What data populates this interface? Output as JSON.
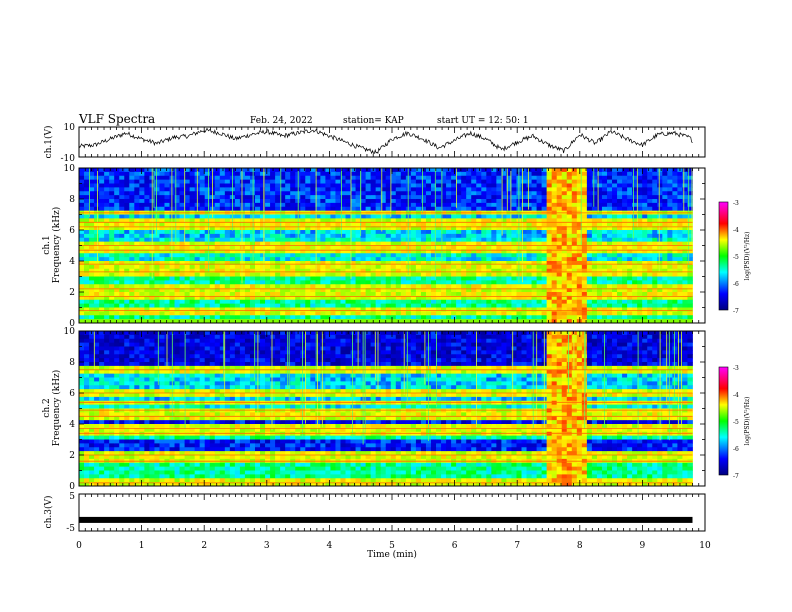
{
  "header": {
    "title": "VLF Spectra",
    "date": "Feb. 24, 2022",
    "station": "station= KAP",
    "start": "start  UT =   12: 50: 1"
  },
  "panels": {
    "ch1_waveform": {
      "ylabel": "ch.1(V)",
      "ticks": [
        "10",
        "-10"
      ]
    },
    "ch1_spectrogram": {
      "ylabel_top": "ch.1",
      "ylabel": "Frequency (kHz)",
      "ticks": [
        "10",
        "8",
        "6",
        "4",
        "2",
        "0"
      ]
    },
    "ch2_spectrogram": {
      "ylabel_top": "ch.2",
      "ylabel": "Frequency (kHz)",
      "ticks": [
        "10",
        "8",
        "6",
        "4",
        "2",
        "0"
      ]
    },
    "ch3_waveform": {
      "ylabel": "ch.3(V)",
      "ticks": [
        "5",
        "-5"
      ]
    }
  },
  "xaxis": {
    "label": "Time (min)",
    "ticks": [
      "0",
      "1",
      "2",
      "3",
      "4",
      "5",
      "6",
      "7",
      "8",
      "9",
      "10"
    ]
  },
  "colorbar": {
    "label": "log(PSD)(V²/Hz)",
    "ticks": [
      "-3",
      "-4",
      "-5",
      "-6",
      "-7"
    ],
    "colors": [
      "#ff00ff",
      "#ff0000",
      "#ffa500",
      "#ffff00",
      "#00ff00",
      "#00ffff",
      "#0000ff",
      "#00007f"
    ]
  },
  "chart_data": [
    {
      "type": "line",
      "title": "VLF Spectra",
      "ylabel": "ch.1(V)",
      "xlabel": "Time (min)",
      "xlim": [
        0,
        10
      ],
      "ylim": [
        -10,
        10
      ],
      "x": [
        0,
        0.25,
        0.5,
        0.75,
        1.0,
        1.25,
        1.5,
        1.75,
        2.0,
        2.25,
        2.5,
        2.75,
        3.0,
        3.25,
        3.5,
        3.75,
        4.0,
        4.25,
        4.5,
        4.75,
        5.0,
        5.25,
        5.5,
        5.75,
        6.0,
        6.25,
        6.5,
        6.75,
        7.0,
        7.25,
        7.5,
        7.75,
        8.0,
        8.25,
        8.5,
        8.75,
        9.0,
        9.25,
        9.5,
        9.75,
        9.8
      ],
      "values": [
        -3,
        -2,
        2,
        6,
        2,
        -1,
        3,
        4,
        8,
        6,
        2,
        5,
        7,
        4,
        6,
        8,
        4,
        0,
        -4,
        -7,
        2,
        6,
        2,
        -4,
        1,
        6,
        2,
        -5,
        0,
        4,
        -2,
        -6,
        5,
        -1,
        7,
        2,
        -2,
        5,
        6,
        3,
        1
      ]
    },
    {
      "type": "heatmap",
      "ylabel": "Frequency (kHz)",
      "xlim": [
        0,
        10
      ],
      "ylim": [
        0,
        10
      ],
      "colorbar_label": "log(PSD)(V²/Hz)",
      "zlim": [
        -7,
        -3
      ],
      "line_freqs_khz": [
        0.8,
        1.7,
        2.2,
        3.3,
        3.8,
        4.7,
        5.0,
        6.2,
        6.5,
        7.1
      ],
      "broadband_interval_min": [
        7.5,
        8.1
      ]
    },
    {
      "type": "heatmap",
      "ylabel": "Frequency (kHz)",
      "xlim": [
        0,
        10
      ],
      "ylim": [
        0,
        10
      ],
      "colorbar_label": "log(PSD)(V²/Hz)",
      "zlim": [
        -7,
        -3
      ],
      "line_freqs_khz": [
        0.2,
        1.6,
        2.0,
        3.4,
        3.7,
        4.5,
        4.9,
        5.4,
        6.0,
        7.5
      ],
      "broadband_interval_min": [
        7.5,
        8.1
      ]
    },
    {
      "type": "line",
      "ylabel": "ch.3(V)",
      "xlim": [
        0,
        10
      ],
      "ylim": [
        -5,
        5
      ],
      "x": [
        0,
        9.8
      ],
      "values": [
        -2,
        -2
      ]
    }
  ]
}
